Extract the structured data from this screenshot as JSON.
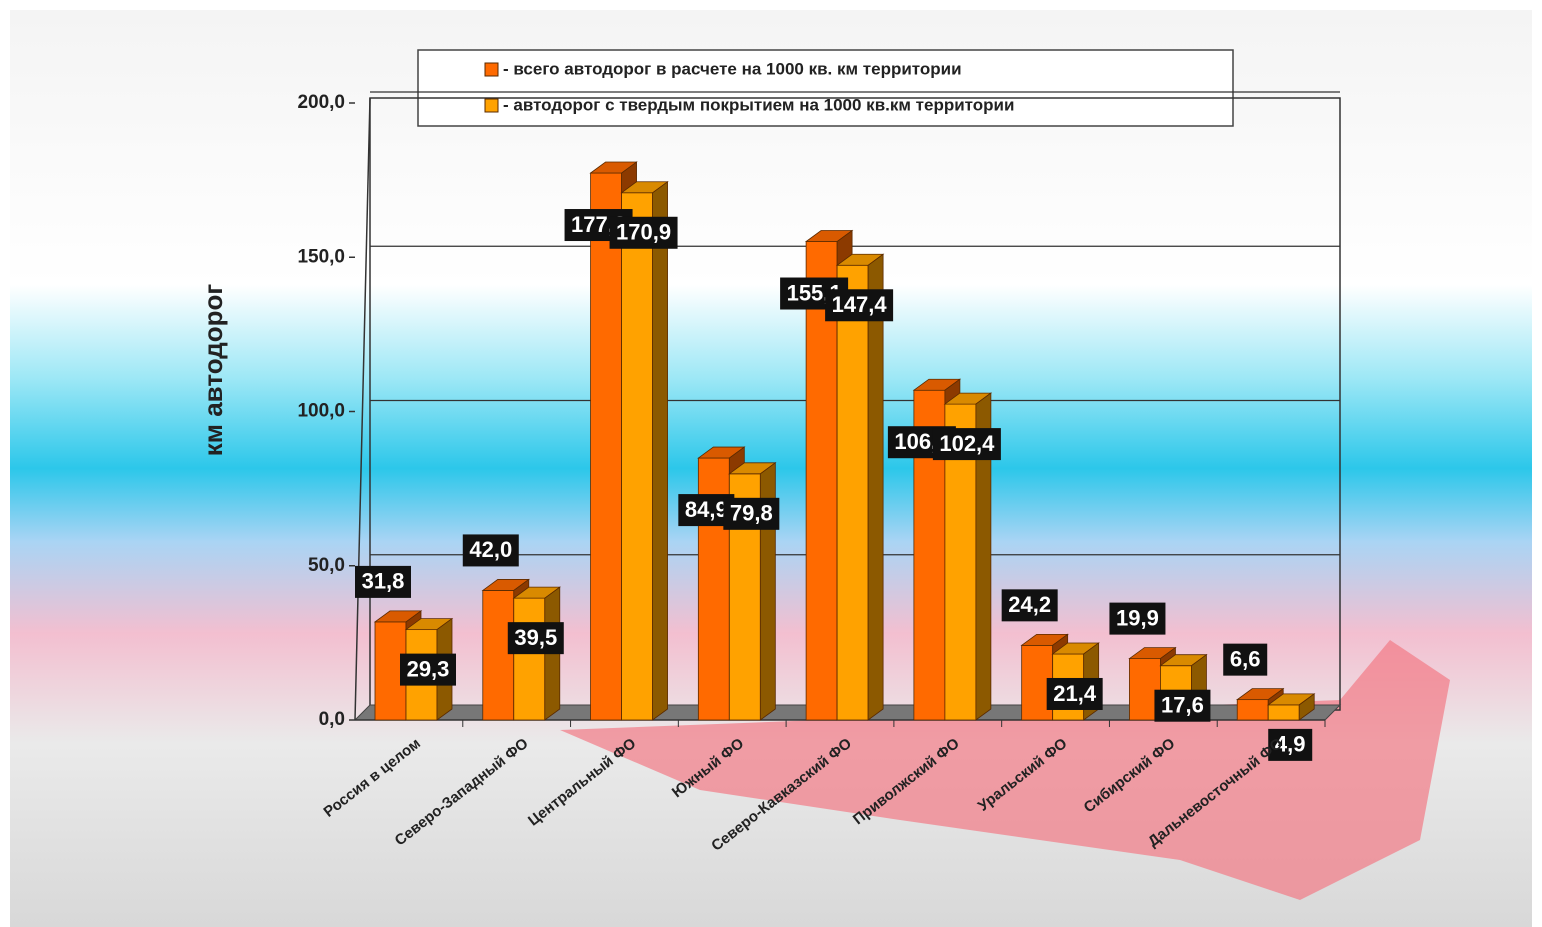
{
  "chart_data": {
    "type": "bar3d",
    "ylabel": "км автодорог",
    "categories": [
      "Россия в целом",
      "Северо-Западный ФО",
      "Центральный ФО",
      "Южный ФО",
      "Северо-Кавказский ФО",
      "Приволжский ФО",
      "Уральский ФО",
      "Сибирский ФО",
      "Дальневосточный ФО"
    ],
    "series": [
      {
        "name": "- всего автодорог в расчете на 1000 кв. км территории",
        "color": "#ff6a00",
        "values": [
          31.8,
          42.0,
          177.3,
          84.9,
          155.1,
          106.9,
          24.2,
          19.9,
          6.6
        ],
        "value_labels": [
          "31,8",
          "42,0",
          "177,3",
          "84,9",
          "155,1",
          "106,9",
          "24,2",
          "19,9",
          "6,6"
        ]
      },
      {
        "name": "- автодорог с твердым покрытием на 1000 кв.км территории",
        "color": "#ffa200",
        "values": [
          29.3,
          39.5,
          170.9,
          79.8,
          147.4,
          102.4,
          21.4,
          17.6,
          4.9
        ],
        "value_labels": [
          "29,3",
          "39,5",
          "170,9",
          "79,8",
          "147,4",
          "102,4",
          "21,4",
          "17,6",
          "4,9"
        ]
      }
    ],
    "ylim": [
      0,
      200
    ],
    "yticks": [
      {
        "value": 0,
        "label": "0,0"
      },
      {
        "value": 50,
        "label": "50,0"
      },
      {
        "value": 100,
        "label": "100,0"
      },
      {
        "value": 150,
        "label": "150,0"
      },
      {
        "value": 200,
        "label": "200,0"
      }
    ],
    "grid": true
  }
}
